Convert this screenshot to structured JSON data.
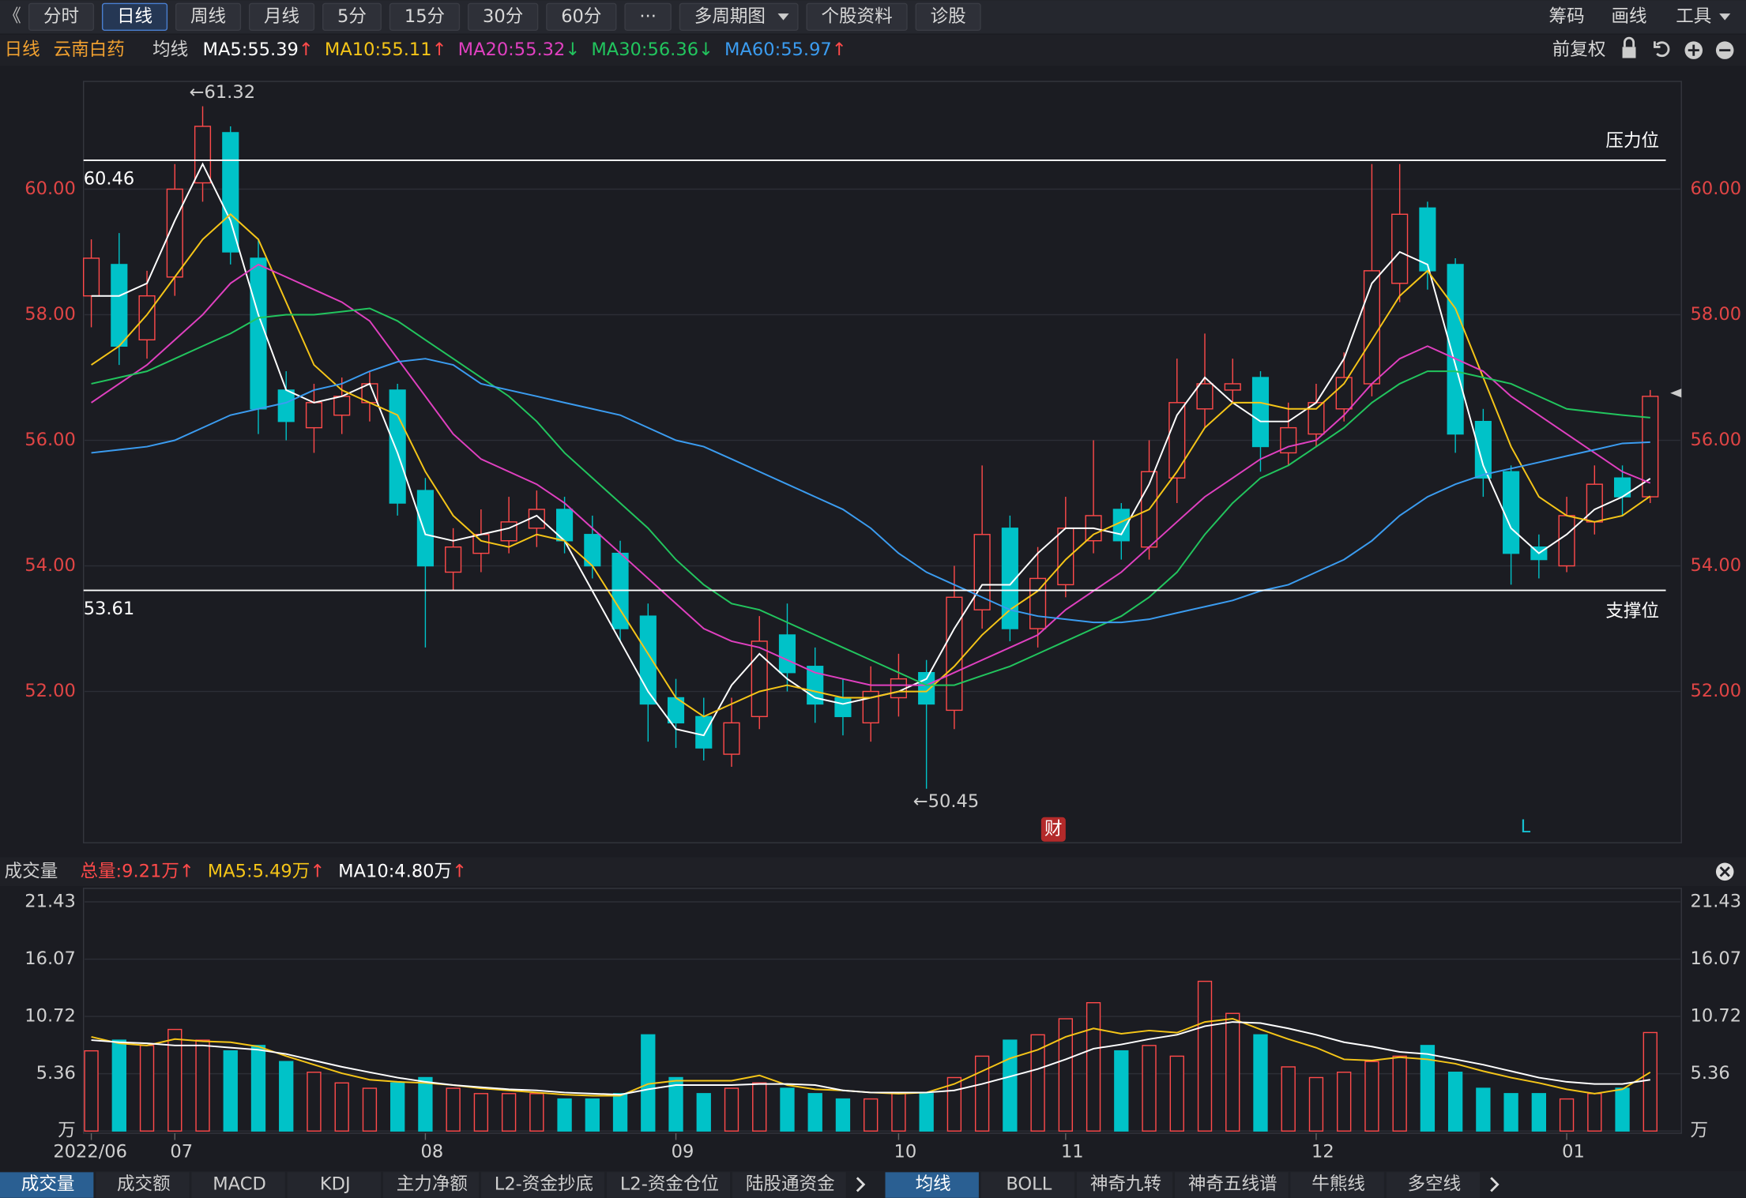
{
  "toolbar": {
    "tabs": [
      "分时",
      "日线",
      "周线",
      "月线",
      "5分",
      "15分",
      "30分",
      "60分",
      "···",
      "多周期图",
      "个股资料",
      "诊股"
    ],
    "right": [
      "筹码",
      "画线",
      "工具"
    ]
  },
  "ma_bar": {
    "period": "日线",
    "stock": "云南白药",
    "label": "均线",
    "items": [
      {
        "text": "MA5:55.39",
        "arrow": "↑"
      },
      {
        "text": "MA10:55.11",
        "arrow": "↑"
      },
      {
        "text": "MA20:55.32",
        "arrow": "↓"
      },
      {
        "text": "MA30:56.36",
        "arrow": "↓"
      },
      {
        "text": "MA60:55.97",
        "arrow": "↑"
      }
    ],
    "adjust": "前复权"
  },
  "chart_data": [
    {
      "type": "candlestick",
      "up_color": "#ff4a4a",
      "down_color": "#00c2c8",
      "open": [
        58.3,
        58.8,
        57.6,
        58.6,
        60.1,
        60.9,
        58.9,
        56.8,
        56.2,
        56.4,
        56.6,
        56.8,
        55.2,
        53.9,
        54.2,
        54.4,
        54.6,
        54.9,
        54.5,
        54.2,
        53.2,
        51.9,
        51.6,
        51.0,
        51.6,
        52.9,
        52.4,
        51.9,
        51.5,
        51.9,
        52.3,
        51.7,
        53.3,
        54.6,
        53.0,
        53.7,
        54.4,
        54.9,
        54.3,
        55.4,
        56.5,
        56.8,
        57.0,
        55.8,
        56.1,
        56.5,
        56.9,
        58.5,
        59.7,
        58.8,
        56.3,
        55.5,
        54.3,
        54.0,
        54.7,
        55.4,
        55.1
      ],
      "high": [
        59.2,
        59.3,
        58.7,
        60.4,
        61.32,
        61.0,
        59.2,
        57.1,
        56.9,
        57.0,
        57.1,
        56.9,
        55.4,
        54.6,
        54.9,
        55.1,
        55.2,
        55.1,
        54.8,
        54.4,
        53.4,
        52.2,
        51.9,
        51.9,
        53.2,
        53.4,
        52.7,
        52.2,
        52.4,
        52.6,
        52.5,
        54.0,
        55.6,
        54.8,
        54.3,
        55.1,
        56.0,
        55.0,
        56.0,
        57.3,
        57.7,
        57.3,
        57.1,
        56.6,
        56.9,
        57.4,
        60.4,
        60.4,
        59.8,
        58.9,
        56.5,
        55.6,
        54.5,
        55.1,
        55.6,
        55.6,
        56.8
      ],
      "low": [
        57.8,
        57.2,
        57.3,
        58.3,
        59.8,
        58.8,
        56.1,
        56.0,
        55.8,
        56.1,
        56.3,
        54.8,
        52.7,
        53.6,
        53.9,
        54.2,
        54.3,
        54.2,
        53.8,
        52.8,
        51.2,
        51.1,
        50.9,
        50.8,
        51.4,
        52.0,
        51.5,
        51.3,
        51.2,
        51.6,
        50.45,
        51.4,
        53.0,
        52.8,
        52.7,
        53.5,
        54.2,
        54.1,
        54.1,
        55.0,
        56.2,
        56.6,
        55.5,
        55.6,
        55.9,
        56.3,
        56.7,
        58.2,
        58.4,
        55.8,
        55.1,
        53.7,
        53.8,
        53.9,
        54.5,
        54.8,
        55.0
      ],
      "close": [
        58.9,
        57.5,
        58.3,
        60.0,
        61.0,
        59.0,
        56.5,
        56.3,
        56.6,
        56.7,
        56.9,
        55.0,
        54.0,
        54.3,
        54.5,
        54.7,
        54.9,
        54.4,
        54.0,
        53.0,
        51.8,
        51.5,
        51.1,
        51.5,
        52.8,
        52.3,
        51.8,
        51.6,
        52.0,
        52.2,
        51.8,
        53.5,
        54.5,
        53.0,
        53.8,
        54.6,
        54.8,
        54.4,
        55.5,
        56.6,
        56.9,
        56.9,
        55.9,
        56.2,
        56.6,
        57.0,
        58.7,
        59.6,
        58.7,
        56.1,
        55.4,
        54.2,
        54.1,
        54.8,
        55.3,
        55.1,
        56.7
      ],
      "series": [
        {
          "name": "MA5",
          "color": "#ffffff",
          "values": [
            58.3,
            58.3,
            58.5,
            59.5,
            60.4,
            59.5,
            58.0,
            56.8,
            56.6,
            56.7,
            56.9,
            55.8,
            54.5,
            54.4,
            54.5,
            54.6,
            54.8,
            54.4,
            53.6,
            52.8,
            52.0,
            51.4,
            51.3,
            52.1,
            52.6,
            52.2,
            51.9,
            51.8,
            51.9,
            52.0,
            52.2,
            53.0,
            53.7,
            53.7,
            54.2,
            54.6,
            54.6,
            54.5,
            55.3,
            56.4,
            57.0,
            56.6,
            56.3,
            56.3,
            56.6,
            57.3,
            58.5,
            59.0,
            58.8,
            57.2,
            55.6,
            54.6,
            54.2,
            54.5,
            54.9,
            55.1,
            55.39
          ]
        },
        {
          "name": "MA10",
          "color": "#f5c518",
          "values": [
            57.2,
            57.5,
            58.0,
            58.6,
            59.2,
            59.6,
            59.2,
            58.2,
            57.2,
            56.8,
            56.6,
            56.4,
            55.5,
            54.8,
            54.4,
            54.3,
            54.5,
            54.4,
            54.0,
            53.3,
            52.6,
            51.9,
            51.6,
            51.8,
            52.0,
            52.1,
            52.0,
            51.9,
            51.9,
            52.0,
            52.0,
            52.4,
            52.9,
            53.3,
            53.6,
            54.1,
            54.5,
            54.7,
            54.9,
            55.5,
            56.2,
            56.6,
            56.6,
            56.5,
            56.5,
            56.9,
            57.6,
            58.3,
            58.7,
            58.1,
            57.0,
            55.9,
            55.1,
            54.8,
            54.7,
            54.8,
            55.11
          ]
        },
        {
          "name": "MA20",
          "color": "#e040c0",
          "values": [
            56.6,
            56.9,
            57.2,
            57.6,
            58.0,
            58.5,
            58.8,
            58.6,
            58.4,
            58.2,
            57.9,
            57.3,
            56.7,
            56.1,
            55.7,
            55.5,
            55.3,
            55.0,
            54.6,
            54.2,
            53.8,
            53.4,
            53.0,
            52.8,
            52.7,
            52.5,
            52.3,
            52.2,
            52.1,
            52.1,
            52.1,
            52.3,
            52.5,
            52.7,
            52.9,
            53.3,
            53.6,
            53.9,
            54.3,
            54.7,
            55.1,
            55.4,
            55.7,
            55.9,
            56.0,
            56.4,
            56.9,
            57.3,
            57.5,
            57.3,
            57.1,
            56.7,
            56.4,
            56.1,
            55.8,
            55.5,
            55.32
          ]
        },
        {
          "name": "MA30",
          "color": "#22c55e",
          "values": [
            56.9,
            57.0,
            57.1,
            57.3,
            57.5,
            57.7,
            57.95,
            58.0,
            58.0,
            58.05,
            58.1,
            57.9,
            57.6,
            57.3,
            57.0,
            56.7,
            56.3,
            55.8,
            55.4,
            55.0,
            54.6,
            54.1,
            53.7,
            53.4,
            53.3,
            53.1,
            52.9,
            52.7,
            52.5,
            52.3,
            52.1,
            52.1,
            52.25,
            52.4,
            52.6,
            52.8,
            53.0,
            53.2,
            53.5,
            53.9,
            54.5,
            55.0,
            55.4,
            55.6,
            55.9,
            56.2,
            56.6,
            56.9,
            57.1,
            57.1,
            57.0,
            56.9,
            56.7,
            56.5,
            56.45,
            56.4,
            56.36
          ]
        },
        {
          "name": "MA60",
          "color": "#3b9cf0",
          "values": [
            55.8,
            55.85,
            55.9,
            56.0,
            56.2,
            56.4,
            56.5,
            56.6,
            56.8,
            56.9,
            57.1,
            57.25,
            57.3,
            57.2,
            56.9,
            56.8,
            56.7,
            56.6,
            56.5,
            56.4,
            56.2,
            56.0,
            55.9,
            55.7,
            55.5,
            55.3,
            55.1,
            54.9,
            54.6,
            54.2,
            53.9,
            53.7,
            53.5,
            53.3,
            53.2,
            53.15,
            53.1,
            53.1,
            53.15,
            53.25,
            53.35,
            53.45,
            53.6,
            53.7,
            53.9,
            54.1,
            54.4,
            54.8,
            55.1,
            55.3,
            55.45,
            55.55,
            55.65,
            55.75,
            55.85,
            55.95,
            55.97
          ]
        }
      ],
      "ylim": [
        49.59,
        61.68
      ],
      "yticks": [
        {
          "value": 52,
          "label": "52.00"
        },
        {
          "value": 54,
          "label": "54.00"
        },
        {
          "value": 56,
          "label": "56.00"
        },
        {
          "value": 58,
          "label": "58.00"
        },
        {
          "value": 60,
          "label": "60.00"
        }
      ],
      "grid": true,
      "levels": [
        {
          "value": 60.46,
          "name": "压力位"
        },
        {
          "value": 53.61,
          "name": "支撑位"
        }
      ],
      "annotations": [
        {
          "value": 61.32,
          "label": "←61.32"
        },
        {
          "value": 50.45,
          "label": "←50.45"
        }
      ],
      "markers": [
        "财",
        "L"
      ]
    },
    {
      "type": "bar",
      "title": "成交量",
      "info": [
        {
          "text": "总量:9.21万",
          "arrow": "↑",
          "color": "#ff4a4a"
        },
        {
          "text": "MA5:5.49万",
          "arrow": "↑",
          "color": "#f5c518"
        },
        {
          "text": "MA10:4.80万",
          "arrow": "↑",
          "color": "#ffffff"
        }
      ],
      "categories": [
        "2022/06",
        null,
        null,
        "07",
        null,
        null,
        null,
        null,
        null,
        null,
        null,
        null,
        "08",
        null,
        null,
        null,
        null,
        null,
        null,
        null,
        null,
        "09",
        null,
        null,
        null,
        null,
        null,
        null,
        null,
        "10",
        null,
        null,
        null,
        null,
        null,
        "11",
        null,
        null,
        null,
        null,
        null,
        null,
        null,
        null,
        "12",
        null,
        null,
        null,
        null,
        null,
        null,
        null,
        null,
        "01",
        null,
        null,
        null
      ],
      "values": [
        7.5,
        8.5,
        8.0,
        9.5,
        8.5,
        7.5,
        8.0,
        6.5,
        5.5,
        4.5,
        4.0,
        4.5,
        5.0,
        4.0,
        3.5,
        3.5,
        3.5,
        3.0,
        3.0,
        3.5,
        9.0,
        5.0,
        3.5,
        4.0,
        4.5,
        4.0,
        3.5,
        3.0,
        3.0,
        3.5,
        3.5,
        5.0,
        7.0,
        8.5,
        9.0,
        10.5,
        12.0,
        7.5,
        8.0,
        7.0,
        14.0,
        11.0,
        9.0,
        6.0,
        5.0,
        5.5,
        6.5,
        7.0,
        8.0,
        5.5,
        4.0,
        3.5,
        3.5,
        3.0,
        3.5,
        4.0,
        9.21
      ],
      "series": [
        {
          "name": "MA5",
          "color": "#f5c518",
          "values": [
            8.8,
            8.2,
            8.0,
            8.6,
            8.4,
            8.3,
            7.9,
            7.0,
            6.2,
            5.4,
            4.8,
            4.6,
            4.5,
            4.3,
            4.0,
            3.8,
            3.6,
            3.4,
            3.3,
            3.3,
            4.4,
            4.7,
            4.7,
            4.7,
            5.2,
            4.3,
            3.9,
            3.8,
            3.6,
            3.5,
            3.6,
            4.4,
            5.6,
            6.8,
            7.6,
            8.8,
            9.6,
            9.1,
            9.4,
            9.2,
            10.2,
            10.5,
            9.5,
            8.6,
            7.8,
            6.7,
            6.6,
            6.9,
            6.7,
            6.3,
            5.6,
            5.0,
            4.5,
            3.9,
            3.5,
            3.9,
            5.49
          ]
        },
        {
          "name": "MA10",
          "color": "#ffffff",
          "values": [
            8.5,
            8.3,
            8.2,
            8.0,
            8.0,
            7.8,
            7.6,
            7.2,
            6.6,
            6.0,
            5.5,
            5.0,
            4.6,
            4.3,
            4.1,
            3.9,
            3.8,
            3.6,
            3.5,
            3.4,
            3.9,
            4.3,
            4.3,
            4.3,
            4.4,
            4.4,
            4.3,
            3.8,
            3.6,
            3.6,
            3.6,
            3.8,
            4.4,
            5.1,
            5.8,
            6.7,
            7.7,
            8.1,
            8.6,
            9.0,
            9.8,
            10.2,
            10.1,
            9.6,
            9.0,
            8.3,
            7.9,
            7.4,
            7.2,
            6.7,
            6.2,
            5.6,
            5.0,
            4.6,
            4.4,
            4.4,
            4.8
          ]
        }
      ],
      "ylim": [
        0,
        22.48
      ],
      "yticks": [
        {
          "value": 0,
          "label": "万"
        },
        5.36,
        10.72,
        16.07,
        21.43
      ],
      "grid": true
    }
  ],
  "bottom_tabs": {
    "left": [
      "成交量",
      "成交额",
      "MACD",
      "KDJ",
      "主力净额",
      "L2-资金抄底",
      "L2-资金仓位",
      "陆股通资金"
    ],
    "right": [
      "均线",
      "BOLL",
      "神奇九转",
      "神奇五线谱",
      "牛熊线",
      "多空线"
    ]
  }
}
